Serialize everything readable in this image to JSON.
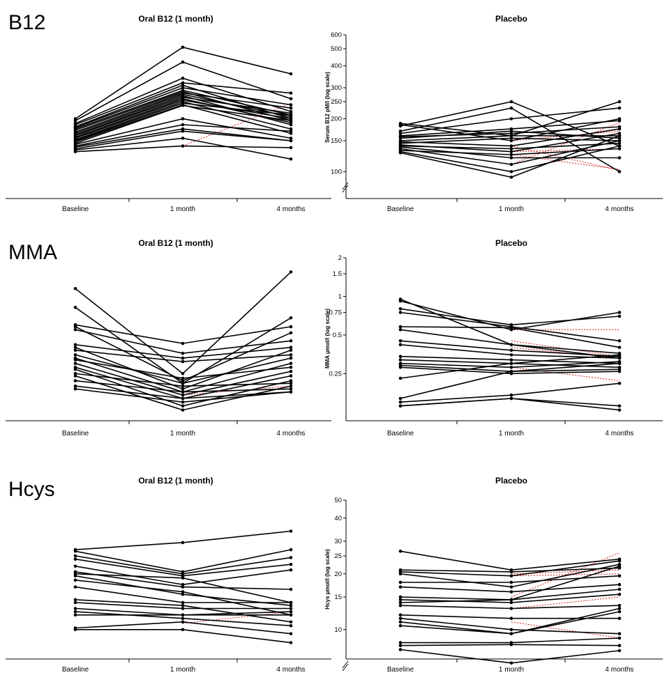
{
  "chart_data": [
    {
      "type": "line",
      "row_label": "B12",
      "title": "Oral B12 (1 month)",
      "x": [
        "Baseline",
        "1 month",
        "4 months"
      ],
      "yscale": "log",
      "ylim": [
        90,
        600
      ],
      "series": [
        {
          "values": [
            200,
            510,
            360
          ]
        },
        {
          "values": [
            195,
            420,
            260
          ]
        },
        {
          "values": [
            188,
            340,
            220
          ]
        },
        {
          "values": [
            185,
            320,
            280
          ]
        },
        {
          "values": [
            180,
            310,
            200
          ]
        },
        {
          "values": [
            178,
            300,
            240
          ]
        },
        {
          "values": [
            175,
            290,
            210
          ]
        },
        {
          "values": [
            172,
            285,
            195
          ]
        },
        {
          "values": [
            168,
            280,
            230
          ]
        },
        {
          "values": [
            165,
            275,
            205
          ]
        },
        {
          "values": [
            162,
            270,
            185
          ]
        },
        {
          "values": [
            160,
            265,
            215
          ]
        },
        {
          "values": [
            157,
            260,
            190
          ]
        },
        {
          "values": [
            155,
            255,
            200
          ]
        },
        {
          "values": [
            152,
            250,
            175
          ]
        },
        {
          "values": [
            150,
            245,
            210
          ]
        },
        {
          "values": [
            148,
            240,
            165
          ]
        },
        {
          "values": [
            145,
            238,
            195
          ]
        },
        {
          "values": [
            143,
            200,
            155
          ]
        },
        {
          "values": [
            140,
            185,
            170
          ]
        },
        {
          "values": [
            138,
            175,
            150
          ]
        },
        {
          "values": [
            135,
            170,
            150
          ]
        },
        {
          "values": [
            133,
            155,
            118
          ]
        },
        {
          "values": [
            130,
            140,
            137
          ]
        }
      ],
      "dotted_series": [
        {
          "color": "#d01a1a",
          "values": [
            null,
            140,
            245
          ]
        }
      ]
    },
    {
      "type": "line",
      "row_label": "",
      "title": "Placebo",
      "x": [
        "Baseline",
        "1 month",
        "4 months"
      ],
      "yscale": "log",
      "ylim": [
        90,
        600
      ],
      "yticks": [
        100,
        150,
        200,
        250,
        300,
        400,
        500,
        600
      ],
      "axis_break": true,
      "ylabel": "Serum B12 pM/l (log scale)",
      "series": [
        {
          "values": [
            188,
            160,
            250
          ]
        },
        {
          "values": [
            185,
            150,
            200
          ]
        },
        {
          "values": [
            182,
            250,
            140
          ]
        },
        {
          "values": [
            170,
            230,
            100
          ]
        },
        {
          "values": [
            165,
            200,
            230
          ]
        },
        {
          "values": [
            160,
            175,
            195
          ]
        },
        {
          "values": [
            158,
            165,
            180
          ]
        },
        {
          "values": [
            155,
            170,
            155
          ]
        },
        {
          "values": [
            150,
            160,
            160
          ]
        },
        {
          "values": [
            148,
            140,
            175
          ]
        },
        {
          "values": [
            145,
            155,
            150
          ]
        },
        {
          "values": [
            142,
            130,
            165
          ]
        },
        {
          "values": [
            140,
            135,
            145
          ]
        },
        {
          "values": [
            138,
            120,
            120
          ]
        },
        {
          "values": [
            135,
            110,
            150
          ]
        },
        {
          "values": [
            132,
            125,
            135
          ]
        },
        {
          "values": [
            130,
            100,
            140
          ]
        },
        {
          "values": [
            128,
            93,
            160
          ]
        }
      ],
      "dotted_series": [
        {
          "color": "#d01a1a",
          "values": [
            null,
            110,
            190
          ]
        },
        {
          "color": "#d01a1a",
          "values": [
            null,
            125,
            103
          ]
        },
        {
          "color": "#d01a1a",
          "values": [
            null,
            140,
            102
          ]
        },
        {
          "color": "#d01a1a",
          "values": [
            null,
            130,
            135
          ]
        },
        {
          "color": "#d01a1a",
          "values": [
            null,
            150,
            170
          ]
        }
      ]
    },
    {
      "type": "line",
      "row_label": "MMA",
      "title": "Oral B12 (1 month)",
      "x": [
        "Baseline",
        "1 month",
        "4 months"
      ],
      "yscale": "log",
      "ylim": [
        0.11,
        2.0
      ],
      "series": [
        {
          "values": [
            1.15,
            0.25,
            1.55
          ]
        },
        {
          "values": [
            0.82,
            0.21,
            0.68
          ]
        },
        {
          "values": [
            0.6,
            0.43,
            0.58
          ]
        },
        {
          "values": [
            0.58,
            0.22,
            0.52
          ]
        },
        {
          "values": [
            0.55,
            0.36,
            0.45
          ]
        },
        {
          "values": [
            0.42,
            0.33,
            0.4
          ]
        },
        {
          "values": [
            0.4,
            0.19,
            0.38
          ]
        },
        {
          "values": [
            0.38,
            0.31,
            0.35
          ]
        },
        {
          "values": [
            0.35,
            0.21,
            0.33
          ]
        },
        {
          "values": [
            0.33,
            0.18,
            0.3
          ]
        },
        {
          "values": [
            0.32,
            0.23,
            0.28
          ]
        },
        {
          "values": [
            0.3,
            0.17,
            0.26
          ]
        },
        {
          "values": [
            0.28,
            0.16,
            0.24
          ]
        },
        {
          "values": [
            0.27,
            0.14,
            0.22
          ]
        },
        {
          "values": [
            0.25,
            0.2,
            0.21
          ]
        },
        {
          "values": [
            0.24,
            0.13,
            0.2
          ]
        },
        {
          "values": [
            0.22,
            0.18,
            0.19
          ]
        },
        {
          "values": [
            0.2,
            0.16,
            0.18
          ]
        },
        {
          "values": [
            0.19,
            0.15,
            0.18
          ]
        }
      ],
      "dotted_series": [
        {
          "color": "#d01a1a",
          "values": [
            null,
            0.18,
            0.19
          ]
        },
        {
          "color": "#d01a1a",
          "values": [
            null,
            0.17,
            0.2
          ]
        }
      ]
    },
    {
      "type": "line",
      "row_label": "",
      "title": "Placebo",
      "x": [
        "Baseline",
        "1 month",
        "4 months"
      ],
      "yscale": "log",
      "ylim": [
        0.11,
        2.0
      ],
      "yticks": [
        0.25,
        0.5,
        0.75,
        1.0,
        1.5,
        2.0
      ],
      "ylabel": "MMA µmol/l (log scale)",
      "series": [
        {
          "values": [
            0.95,
            0.42,
            0.33
          ]
        },
        {
          "values": [
            0.92,
            0.55,
            0.75
          ]
        },
        {
          "values": [
            0.8,
            0.6,
            0.7
          ]
        },
        {
          "values": [
            0.75,
            0.58,
            0.45
          ]
        },
        {
          "values": [
            0.58,
            0.57,
            0.4
          ]
        },
        {
          "values": [
            0.55,
            0.42,
            0.36
          ]
        },
        {
          "values": [
            0.45,
            0.38,
            0.34
          ]
        },
        {
          "values": [
            0.42,
            0.35,
            0.33
          ]
        },
        {
          "values": [
            0.34,
            0.32,
            0.3
          ]
        },
        {
          "values": [
            0.32,
            0.3,
            0.28
          ]
        },
        {
          "values": [
            0.3,
            0.28,
            0.31
          ]
        },
        {
          "values": [
            0.29,
            0.26,
            0.27
          ]
        },
        {
          "values": [
            0.28,
            0.25,
            0.26
          ]
        },
        {
          "values": [
            0.23,
            0.3,
            0.35
          ]
        },
        {
          "values": [
            0.16,
            0.26,
            0.3
          ]
        },
        {
          "values": [
            0.15,
            0.17,
            0.21
          ]
        },
        {
          "values": [
            0.14,
            0.16,
            0.14
          ]
        },
        {
          "values": [
            0.14,
            0.16,
            0.13
          ]
        }
      ],
      "dotted_series": [
        {
          "color": "#d01a1a",
          "values": [
            null,
            0.55,
            0.55
          ]
        },
        {
          "color": "#d01a1a",
          "values": [
            null,
            0.45,
            0.34
          ]
        },
        {
          "color": "#d01a1a",
          "values": [
            null,
            0.4,
            0.33
          ]
        },
        {
          "color": "#d01a1a",
          "values": [
            null,
            0.28,
            0.22
          ]
        }
      ]
    },
    {
      "type": "line",
      "row_label": "Hcys",
      "title": "Oral B12 (1 month)",
      "x": [
        "Baseline",
        "1 month",
        "4 months"
      ],
      "yscale": "log",
      "ylim": [
        7,
        50
      ],
      "series": [
        {
          "values": [
            27,
            29.5,
            34
          ]
        },
        {
          "values": [
            26.5,
            20.5,
            27
          ]
        },
        {
          "values": [
            25,
            20,
            24.5
          ]
        },
        {
          "values": [
            24,
            19.5,
            22.5
          ]
        },
        {
          "values": [
            22,
            17.5,
            21
          ]
        },
        {
          "values": [
            20.5,
            17,
            16.5
          ]
        },
        {
          "values": [
            20,
            19,
            14
          ]
        },
        {
          "values": [
            19.5,
            15.5,
            13.5
          ]
        },
        {
          "values": [
            18.5,
            16,
            12
          ]
        },
        {
          "values": [
            17,
            14,
            14
          ]
        },
        {
          "values": [
            14.5,
            13.5,
            11
          ]
        },
        {
          "values": [
            14,
            13,
            13
          ]
        },
        {
          "values": [
            13,
            12,
            12
          ]
        },
        {
          "values": [
            12.5,
            11.5,
            10.5
          ]
        },
        {
          "values": [
            12,
            12,
            12.5
          ]
        },
        {
          "values": [
            10.2,
            11,
            9.5
          ]
        },
        {
          "values": [
            10,
            10,
            8.5
          ]
        }
      ],
      "dotted_series": [
        {
          "color": "#d01a1a",
          "values": [
            null,
            10.8,
            12.5
          ]
        }
      ]
    },
    {
      "type": "line",
      "row_label": "",
      "title": "Placebo",
      "x": [
        "Baseline",
        "1 month",
        "4 months"
      ],
      "yscale": "log",
      "ylim": [
        7,
        50
      ],
      "yticks": [
        10,
        15,
        20,
        25,
        30,
        40,
        50
      ],
      "axis_break": true,
      "ylabel": "Hcys µmol/l (log scale)",
      "series": [
        {
          "values": [
            26.5,
            21,
            24
          ]
        },
        {
          "values": [
            21,
            20.5,
            21.5
          ]
        },
        {
          "values": [
            20.5,
            19.5,
            23.5
          ]
        },
        {
          "values": [
            20,
            17,
            22.5
          ]
        },
        {
          "values": [
            18,
            18,
            19.5
          ]
        },
        {
          "values": [
            17,
            16,
            17.5
          ]
        },
        {
          "values": [
            15,
            14.5,
            16.5
          ]
        },
        {
          "values": [
            14.5,
            14,
            15.5
          ]
        },
        {
          "values": [
            14,
            14.5,
            22
          ]
        },
        {
          "values": [
            13.5,
            13,
            13.5
          ]
        },
        {
          "values": [
            12,
            11.5,
            11.5
          ]
        },
        {
          "values": [
            11.5,
            10,
            9.5
          ]
        },
        {
          "values": [
            11,
            9.5,
            13
          ]
        },
        {
          "values": [
            10.5,
            9.5,
            12.5
          ]
        },
        {
          "values": [
            8.5,
            8.5,
            9
          ]
        },
        {
          "values": [
            8.2,
            8.3,
            8.2
          ]
        },
        {
          "values": [
            7.8,
            6.6,
            7.7
          ]
        }
      ],
      "dotted_series": [
        {
          "color": "#d01a1a",
          "values": [
            null,
            19.5,
            20
          ]
        },
        {
          "color": "#d01a1a",
          "values": [
            null,
            20,
            21
          ]
        },
        {
          "color": "#d01a1a",
          "values": [
            null,
            15,
            26
          ]
        },
        {
          "color": "#d01a1a",
          "values": [
            null,
            11,
            9
          ]
        },
        {
          "color": "#d01a1a",
          "values": [
            null,
            13,
            15
          ]
        }
      ]
    }
  ]
}
